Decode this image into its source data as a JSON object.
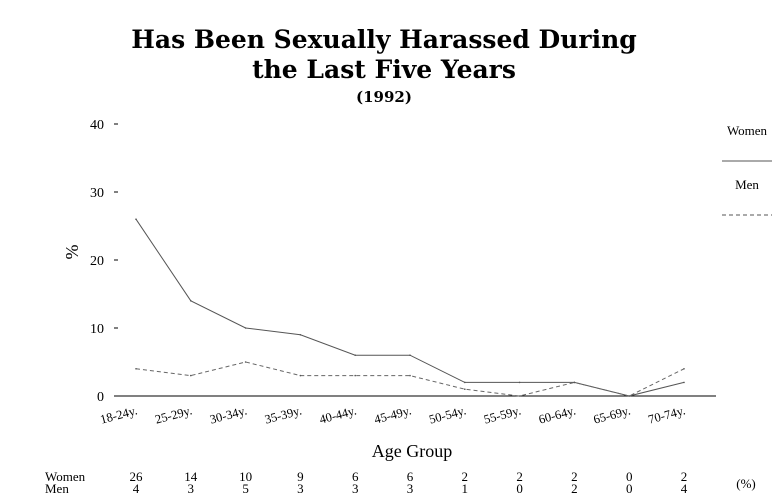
{
  "chart_data": {
    "type": "line",
    "title_line1": "Has Been Sexually Harassed During",
    "title_line2": "the Last Five Years",
    "subtitle": "(1992)",
    "xlabel": "Age Group",
    "ylabel": "%",
    "ylim": [
      0,
      40
    ],
    "yticks": [
      0,
      10,
      20,
      30,
      40
    ],
    "grid": false,
    "legend_position": "right",
    "categories": [
      "18-24y.",
      "25-29y.",
      "30-34y.",
      "35-39y.",
      "40-44y.",
      "45-49y.",
      "50-54y.",
      "55-59y.",
      "60-64y.",
      "65-69y.",
      "70-74y."
    ],
    "series": [
      {
        "name": "Women",
        "values": [
          26,
          14,
          10,
          9,
          6,
          6,
          2,
          2,
          2,
          0,
          2
        ],
        "style": "solid"
      },
      {
        "name": "Men",
        "values": [
          4,
          3,
          5,
          3,
          3,
          3,
          1,
          0,
          2,
          0,
          4
        ],
        "style": "dashed"
      }
    ],
    "table_unit": "(%)"
  }
}
